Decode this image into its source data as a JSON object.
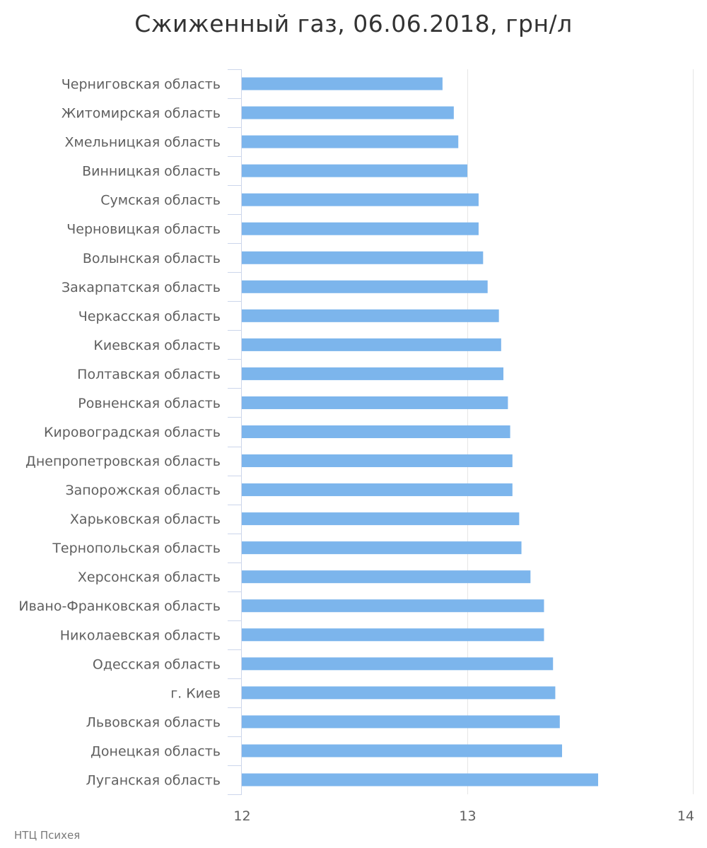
{
  "chart_data": {
    "type": "bar",
    "orientation": "horizontal",
    "title": "Сжиженный газ, 06.06.2018, грн/л",
    "xlabel": "",
    "ylabel": "",
    "xlim": [
      12,
      14
    ],
    "x_ticks": [
      "12",
      "13",
      "14"
    ],
    "grid": "vertical",
    "bar_color": "#7cb5ec",
    "categories": [
      "Черниговская область",
      "Житомирская область",
      "Хмельницкая область",
      "Винницкая область",
      "Сумская область",
      "Черновицкая область",
      "Волынская область",
      "Закарпатская область",
      "Черкасская область",
      "Киевская область",
      "Полтавская область",
      "Ровненская область",
      "Кировоградская область",
      "Днепропетровская область",
      "Запорожская область",
      "Харьковская область",
      "Тернопольская область",
      "Херсонская область",
      "Ивано-Франковская область",
      "Николаевская область",
      "Одесская область",
      "г. Киев",
      "Львовская область",
      "Донецкая область",
      "Луганская область"
    ],
    "values": [
      12.89,
      12.94,
      12.96,
      13.0,
      13.05,
      13.05,
      13.07,
      13.09,
      13.14,
      13.15,
      13.16,
      13.18,
      13.19,
      13.2,
      13.2,
      13.23,
      13.24,
      13.28,
      13.34,
      13.34,
      13.38,
      13.39,
      13.41,
      13.42,
      13.58
    ]
  },
  "credit": "НТЦ Психея"
}
